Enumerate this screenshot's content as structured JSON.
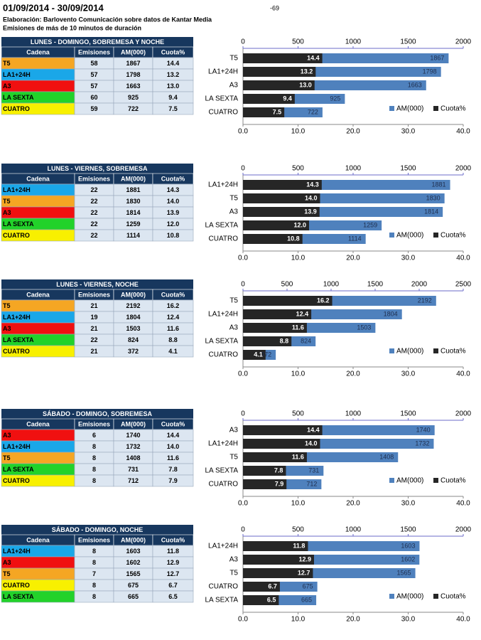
{
  "header": {
    "title": "01/09/2014 - 30/09/2014",
    "page_number": "-69",
    "credit": "Elaboración:  Barlovento Comunicación  sobre datos de Kantar Media",
    "subtitle": "Emisiones  de más de 10 minutos de duración"
  },
  "tables": [
    {
      "title": "LUNES - DOMINGO, SOBREMESA Y NOCHE",
      "columns": [
        "Cadena",
        "Emisiones",
        "AM(000)",
        "Cuota%"
      ],
      "rows": [
        {
          "cells": [
            "T5",
            "58",
            "1867",
            "14.4"
          ],
          "color": "#f5a623"
        },
        {
          "cells": [
            "LA1+24H",
            "57",
            "1798",
            "13.2"
          ],
          "color": "#1aa7e8"
        },
        {
          "cells": [
            "A3",
            "57",
            "1663",
            "13.0"
          ],
          "color": "#f01010"
        },
        {
          "cells": [
            "LA SEXTA",
            "60",
            "925",
            "9.4"
          ],
          "color": "#22d22a"
        },
        {
          "cells": [
            "CUATRO",
            "59",
            "722",
            "7.5"
          ],
          "color": "#f8f000"
        }
      ]
    },
    {
      "title": "LUNES - VIERNES, SOBREMESA",
      "columns": [
        "Cadena",
        "Emisiones",
        "AM(000)",
        "Cuota%"
      ],
      "rows": [
        {
          "cells": [
            "LA1+24H",
            "22",
            "1881",
            "14.3"
          ],
          "color": "#1aa7e8"
        },
        {
          "cells": [
            "T5",
            "22",
            "1830",
            "14.0"
          ],
          "color": "#f5a623"
        },
        {
          "cells": [
            "A3",
            "22",
            "1814",
            "13.9"
          ],
          "color": "#f01010"
        },
        {
          "cells": [
            "LA SEXTA",
            "22",
            "1259",
            "12.0"
          ],
          "color": "#22d22a"
        },
        {
          "cells": [
            "CUATRO",
            "22",
            "1114",
            "10.8"
          ],
          "color": "#f8f000"
        }
      ]
    },
    {
      "title": "LUNES - VIERNES, NOCHE",
      "columns": [
        "Cadena",
        "Emisiones",
        "AM(000)",
        "Cuota%"
      ],
      "rows": [
        {
          "cells": [
            "T5",
            "21",
            "2192",
            "16.2"
          ],
          "color": "#f5a623"
        },
        {
          "cells": [
            "LA1+24H",
            "19",
            "1804",
            "12.4"
          ],
          "color": "#1aa7e8"
        },
        {
          "cells": [
            "A3",
            "21",
            "1503",
            "11.6"
          ],
          "color": "#f01010"
        },
        {
          "cells": [
            "LA SEXTA",
            "22",
            "824",
            "8.8"
          ],
          "color": "#22d22a"
        },
        {
          "cells": [
            "CUATRO",
            "21",
            "372",
            "4.1"
          ],
          "color": "#f8f000"
        }
      ]
    },
    {
      "title": "SÁBADO - DOMINGO, SOBREMESA",
      "columns": [
        "Cadena",
        "Emisiones",
        "AM(000)",
        "Cuota%"
      ],
      "rows": [
        {
          "cells": [
            "A3",
            "6",
            "1740",
            "14.4"
          ],
          "color": "#f01010"
        },
        {
          "cells": [
            "LA1+24H",
            "8",
            "1732",
            "14.0"
          ],
          "color": "#1aa7e8"
        },
        {
          "cells": [
            "T5",
            "8",
            "1408",
            "11.6"
          ],
          "color": "#f5a623"
        },
        {
          "cells": [
            "LA SEXTA",
            "8",
            "731",
            "7.8"
          ],
          "color": "#22d22a"
        },
        {
          "cells": [
            "CUATRO",
            "8",
            "712",
            "7.9"
          ],
          "color": "#f8f000"
        }
      ]
    },
    {
      "title": "SÁBADO - DOMINGO, NOCHE",
      "columns": [
        "Cadena",
        "Emisiones",
        "AM(000)",
        "Cuota%"
      ],
      "rows": [
        {
          "cells": [
            "LA1+24H",
            "8",
            "1603",
            "11.8"
          ],
          "color": "#1aa7e8"
        },
        {
          "cells": [
            "A3",
            "8",
            "1602",
            "12.9"
          ],
          "color": "#f01010"
        },
        {
          "cells": [
            "T5",
            "7",
            "1565",
            "12.7"
          ],
          "color": "#f5a623"
        },
        {
          "cells": [
            "CUATRO",
            "8",
            "675",
            "6.7"
          ],
          "color": "#f8f000"
        },
        {
          "cells": [
            "LA SEXTA",
            "8",
            "665",
            "6.5"
          ],
          "color": "#22d22a"
        }
      ]
    }
  ],
  "chart_data": [
    {
      "type": "bar",
      "categories": [
        "T5",
        "LA1+24H",
        "A3",
        "LA SEXTA",
        "CUATRO"
      ],
      "series": [
        {
          "name": "AM(000)",
          "color": "#4f81bd",
          "axis": "x2",
          "values": [
            1867,
            1798,
            1663,
            925,
            722
          ]
        },
        {
          "name": "Cuota%",
          "color": "#262626",
          "values": [
            14.4,
            13.2,
            13.0,
            9.4,
            7.5
          ],
          "value_labels": [
            "14.4",
            "13.2",
            "13.0",
            "9.4",
            "7.5"
          ]
        }
      ],
      "x2lim": [
        0,
        2000
      ],
      "x2ticks": [
        0,
        500,
        1000,
        1500,
        2000
      ],
      "xlim": [
        0,
        40
      ],
      "xticks": [
        {
          "value": 0,
          "label": "0.0"
        },
        {
          "value": 10,
          "label": "10.0"
        },
        {
          "value": 20,
          "label": "20.0"
        },
        {
          "value": 30,
          "label": "30.0"
        },
        {
          "value": 40,
          "label": "40.0"
        }
      ],
      "legend": "bottom-right"
    },
    {
      "type": "bar",
      "categories": [
        "LA1+24H",
        "T5",
        "A3",
        "LA SEXTA",
        "CUATRO"
      ],
      "series": [
        {
          "name": "AM(000)",
          "color": "#4f81bd",
          "axis": "x2",
          "values": [
            1881,
            1830,
            1814,
            1259,
            1114
          ]
        },
        {
          "name": "Cuota%",
          "color": "#262626",
          "values": [
            14.3,
            14.0,
            13.9,
            12.0,
            10.8
          ],
          "value_labels": [
            "14.3",
            "14.0",
            "13.9",
            "12.0",
            "10.8"
          ]
        }
      ],
      "x2lim": [
        0,
        2000
      ],
      "x2ticks": [
        0,
        500,
        1000,
        1500,
        2000
      ],
      "xlim": [
        0,
        40
      ],
      "xticks": [
        {
          "value": 0,
          "label": "0.0"
        },
        {
          "value": 10,
          "label": "10.0"
        },
        {
          "value": 20,
          "label": "20.0"
        },
        {
          "value": 30,
          "label": "30.0"
        },
        {
          "value": 40,
          "label": "40.0"
        }
      ],
      "legend": "bottom-right"
    },
    {
      "type": "bar",
      "categories": [
        "T5",
        "LA1+24H",
        "A3",
        "LA SEXTA",
        "CUATRO"
      ],
      "series": [
        {
          "name": "AM(000)",
          "color": "#4f81bd",
          "axis": "x2",
          "values": [
            2192,
            1804,
            1503,
            824,
            372
          ]
        },
        {
          "name": "Cuota%",
          "color": "#262626",
          "values": [
            16.2,
            12.4,
            11.6,
            8.8,
            4.1
          ],
          "value_labels": [
            "16.2",
            "12.4",
            "11.6",
            "8.8",
            "4.1"
          ]
        }
      ],
      "x2lim": [
        0,
        2500
      ],
      "x2ticks": [
        0,
        500,
        1000,
        1500,
        2000,
        2500
      ],
      "xlim": [
        0,
        40
      ],
      "xticks": [
        {
          "value": 0,
          "label": "0.0"
        },
        {
          "value": 10,
          "label": "10.0"
        },
        {
          "value": 20,
          "label": "20.0"
        },
        {
          "value": 30,
          "label": "30.0"
        },
        {
          "value": 40,
          "label": "40.0"
        }
      ],
      "legend": "bottom-right"
    },
    {
      "type": "bar",
      "categories": [
        "A3",
        "LA1+24H",
        "T5",
        "LA SEXTA",
        "CUATRO"
      ],
      "series": [
        {
          "name": "AM(000)",
          "color": "#4f81bd",
          "axis": "x2",
          "values": [
            1740,
            1732,
            1408,
            731,
            712
          ]
        },
        {
          "name": "Cuota%",
          "color": "#262626",
          "values": [
            14.4,
            14.0,
            11.6,
            7.8,
            7.9
          ],
          "value_labels": [
            "14.4",
            "14.0",
            "11.6",
            "7.8",
            "7.9"
          ]
        }
      ],
      "x2lim": [
        0,
        2000
      ],
      "x2ticks": [
        0,
        500,
        1000,
        1500,
        2000
      ],
      "xlim": [
        0,
        40
      ],
      "xticks": [
        {
          "value": 0,
          "label": "0.0"
        },
        {
          "value": 10,
          "label": "10.0"
        },
        {
          "value": 20,
          "label": "20.0"
        },
        {
          "value": 30,
          "label": "30.0"
        },
        {
          "value": 40,
          "label": "40.0"
        }
      ],
      "legend": "bottom-right"
    },
    {
      "type": "bar",
      "categories": [
        "LA1+24H",
        "A3",
        "T5",
        "CUATRO",
        "LA SEXTA"
      ],
      "series": [
        {
          "name": "AM(000)",
          "color": "#4f81bd",
          "axis": "x2",
          "values": [
            1603,
            1602,
            1565,
            675,
            665
          ]
        },
        {
          "name": "Cuota%",
          "color": "#262626",
          "values": [
            11.8,
            12.9,
            12.7,
            6.7,
            6.5
          ],
          "value_labels": [
            "11.8",
            "12.9",
            "12.7",
            "6.7",
            "6.5"
          ]
        }
      ],
      "x2lim": [
        0,
        2000
      ],
      "x2ticks": [
        0,
        500,
        1000,
        1500,
        2000
      ],
      "xlim": [
        0,
        40
      ],
      "xticks": [
        {
          "value": 0,
          "label": "0.0"
        },
        {
          "value": 10,
          "label": "10.0"
        },
        {
          "value": 20,
          "label": "20.0"
        },
        {
          "value": 30,
          "label": "30.0"
        },
        {
          "value": 40,
          "label": "40.0"
        }
      ],
      "legend": "bottom-right"
    }
  ]
}
